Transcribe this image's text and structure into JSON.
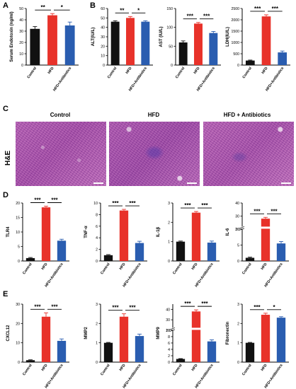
{
  "colors": {
    "control": "#111111",
    "hfd": "#e8322a",
    "abx": "#2a5db0"
  },
  "panels": {
    "A": "A",
    "B": "B",
    "C": "C",
    "D": "D",
    "E": "E"
  },
  "he": {
    "row_label": "H&E",
    "titles": [
      "Control",
      "HFD",
      "HFD + Antibiotics"
    ]
  },
  "chart_data": [
    {
      "id": "A-endotoxin",
      "type": "bar",
      "ylabel": "Serum Endotoxin (ng/ml)",
      "categories": [
        "Control",
        "HFD",
        "HFD+Antibiotics"
      ],
      "values": [
        32,
        44,
        35
      ],
      "errors": [
        2,
        1.5,
        3
      ],
      "ylim": [
        0,
        50
      ],
      "ticks": [
        "0",
        "10",
        "20",
        "30",
        "40",
        "50"
      ],
      "sig": [
        {
          "from": 0,
          "to": 1,
          "label": "**"
        },
        {
          "from": 1,
          "to": 2,
          "label": "*"
        }
      ]
    },
    {
      "id": "B-alt",
      "type": "bar",
      "ylabel": "ALT(IU/L)",
      "categories": [
        "Control",
        "HFD",
        "HFD+Antibiotics"
      ],
      "values": [
        46,
        50,
        46
      ],
      "errors": [
        1,
        1.5,
        1
      ],
      "ylim": [
        0,
        60
      ],
      "ticks": [
        "0",
        "10",
        "20",
        "30",
        "40",
        "50",
        "60"
      ],
      "sig": [
        {
          "from": 0,
          "to": 1,
          "label": "**"
        },
        {
          "from": 1,
          "to": 2,
          "label": "*"
        }
      ]
    },
    {
      "id": "B-ast",
      "type": "bar",
      "ylabel": "AST (IU/L)",
      "categories": [
        "Control",
        "HFD",
        "HFD+Antibiotics"
      ],
      "values": [
        60,
        110,
        85
      ],
      "errors": [
        4,
        3,
        4
      ],
      "ylim": [
        0,
        150
      ],
      "ticks": [
        "0",
        "50",
        "100",
        "150"
      ],
      "sig": [
        {
          "from": 0,
          "to": 1,
          "label": "***"
        },
        {
          "from": 1,
          "to": 2,
          "label": "***"
        }
      ]
    },
    {
      "id": "B-ldh",
      "type": "bar",
      "ylabel": "LDH(IU/L)",
      "categories": [
        "Control",
        "HFD",
        "HFD+Antibiotics"
      ],
      "values": [
        200,
        2150,
        560
      ],
      "errors": [
        20,
        70,
        60
      ],
      "ylim": [
        0,
        2500
      ],
      "ticks": [
        "0",
        "500",
        "1000",
        "1500",
        "2000",
        "2500"
      ],
      "sig": [
        {
          "from": 0,
          "to": 1,
          "label": "***"
        },
        {
          "from": 1,
          "to": 2,
          "label": "***"
        }
      ]
    },
    {
      "id": "D-tlr4",
      "type": "bar",
      "ylabel": "TLR4",
      "categories": [
        "Control",
        "HFD",
        "HFD+Antibiotics"
      ],
      "values": [
        1,
        18.5,
        7
      ],
      "errors": [
        0.2,
        0.4,
        0.5
      ],
      "ylim": [
        0,
        20
      ],
      "ticks": [
        "0",
        "5",
        "10",
        "15",
        "20"
      ],
      "sig": [
        {
          "from": 0,
          "to": 1,
          "label": "***"
        },
        {
          "from": 1,
          "to": 2,
          "label": "***"
        }
      ]
    },
    {
      "id": "D-tnfa",
      "type": "bar",
      "ylabel": "TNF-α",
      "categories": [
        "Control",
        "HFD",
        "HFD+Antibiotics"
      ],
      "values": [
        1,
        8.7,
        3.1
      ],
      "errors": [
        0.1,
        0.2,
        0.3
      ],
      "ylim": [
        0,
        10
      ],
      "ticks": [
        "0",
        "2",
        "4",
        "6",
        "8",
        "10"
      ],
      "sig": [
        {
          "from": 0,
          "to": 1,
          "label": "***"
        },
        {
          "from": 1,
          "to": 2,
          "label": "***"
        }
      ]
    },
    {
      "id": "D-il1b",
      "type": "bar",
      "ylabel": "IL-1β",
      "categories": [
        "Control",
        "HFD",
        "HFD+Antibiotics"
      ],
      "values": [
        1,
        2.5,
        0.95
      ],
      "errors": [
        0.03,
        0.06,
        0.08
      ],
      "ylim": [
        0,
        3
      ],
      "ticks": [
        "0",
        "1",
        "2",
        "3"
      ],
      "sig": [
        {
          "from": 0,
          "to": 1,
          "label": "***"
        },
        {
          "from": 1,
          "to": 2,
          "label": "***"
        }
      ]
    },
    {
      "id": "D-il6",
      "type": "bar",
      "ylabel": "IL-6",
      "categories": [
        "Control",
        "HFD",
        "HFD+Antibiotics"
      ],
      "values": [
        1,
        28,
        5.5
      ],
      "errors": [
        0.2,
        1,
        0.6
      ],
      "ylim": [
        0,
        40
      ],
      "break": [
        10,
        20
      ],
      "ticks": [
        "0",
        "5",
        "10",
        "20",
        "30",
        "40"
      ],
      "sig": [
        {
          "from": 0,
          "to": 1,
          "label": "***"
        },
        {
          "from": 1,
          "to": 2,
          "label": "***"
        }
      ]
    },
    {
      "id": "E-cxcl12",
      "type": "bar",
      "ylabel": "CXCL12",
      "categories": [
        "Control",
        "HFD",
        "HFD+Antibiotics"
      ],
      "values": [
        1,
        23.5,
        11
      ],
      "errors": [
        0.2,
        2,
        1
      ],
      "ylim": [
        0,
        30
      ],
      "ticks": [
        "0",
        "10",
        "20",
        "30"
      ],
      "sig": [
        {
          "from": 0,
          "to": 1,
          "label": "***"
        },
        {
          "from": 1,
          "to": 2,
          "label": "***"
        }
      ]
    },
    {
      "id": "E-mmp2",
      "type": "bar",
      "ylabel": "MMP2",
      "categories": [
        "Control",
        "HFD",
        "HFD+Antibiotics"
      ],
      "values": [
        1,
        2.35,
        1.35
      ],
      "errors": [
        0.02,
        0.15,
        0.1
      ],
      "ylim": [
        0,
        3
      ],
      "ticks": [
        "0",
        "1",
        "2",
        "3"
      ],
      "sig": [
        {
          "from": 0,
          "to": 1,
          "label": "***"
        },
        {
          "from": 1,
          "to": 2,
          "label": "***"
        }
      ]
    },
    {
      "id": "E-mmp9",
      "type": "bar",
      "ylabel": "MMP9",
      "categories": [
        "Control",
        "HFD",
        "HFD+Antibiotics"
      ],
      "values": [
        1,
        38,
        6.5
      ],
      "errors": [
        0.1,
        1.5,
        0.5
      ],
      "ylim": [
        0,
        45
      ],
      "break": [
        10,
        20
      ],
      "ticks": [
        "0",
        "2",
        "4",
        "6",
        "8",
        "10",
        "20",
        "30",
        "40"
      ],
      "sig": [
        {
          "from": 0,
          "to": 1,
          "label": "***"
        },
        {
          "from": 1,
          "to": 2,
          "label": "***"
        }
      ]
    },
    {
      "id": "E-fibronectin",
      "type": "bar",
      "ylabel": "Fibronectin",
      "categories": [
        "Control",
        "HFD",
        "HFD+Antibiotics"
      ],
      "values": [
        1,
        2.45,
        2.3
      ],
      "errors": [
        0.02,
        0.08,
        0.05
      ],
      "ylim": [
        0,
        3
      ],
      "ticks": [
        "0",
        "1",
        "2",
        "3"
      ],
      "sig": [
        {
          "from": 0,
          "to": 1,
          "label": "***"
        },
        {
          "from": 1,
          "to": 2,
          "label": "*"
        }
      ]
    }
  ]
}
